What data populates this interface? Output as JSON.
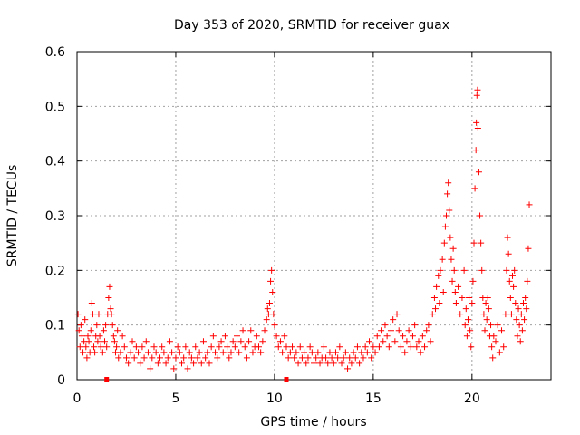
{
  "chart_data": {
    "type": "scatter",
    "title": "Day 353 of 2020, SRMTID for receiver guax",
    "xlabel": "GPS time / hours",
    "ylabel": "SRMTID / TECUs",
    "xlim": [
      0,
      24
    ],
    "ylim": [
      0,
      0.6
    ],
    "xticks": [
      0,
      5,
      10,
      15,
      20
    ],
    "yticks": [
      0,
      0.1,
      0.2,
      0.3,
      0.4,
      0.5,
      0.6
    ],
    "xtick_labels": [
      "0",
      "5",
      "10",
      "15",
      "20"
    ],
    "ytick_labels": [
      "0",
      "0.1",
      "0.2",
      "0.3",
      "0.4",
      "0.5",
      "0.6"
    ],
    "grid": true,
    "marker": "plus",
    "color": "#ff0000",
    "baseline_markers_x": [
      1.5,
      10.6
    ],
    "series": [
      {
        "name": "SRMTID",
        "points": [
          [
            0.05,
            0.12
          ],
          [
            0.1,
            0.09
          ],
          [
            0.15,
            0.06
          ],
          [
            0.2,
            0.1
          ],
          [
            0.25,
            0.08
          ],
          [
            0.3,
            0.05
          ],
          [
            0.35,
            0.07
          ],
          [
            0.4,
            0.11
          ],
          [
            0.45,
            0.06
          ],
          [
            0.5,
            0.04
          ],
          [
            0.55,
            0.08
          ],
          [
            0.6,
            0.07
          ],
          [
            0.65,
            0.05
          ],
          [
            0.7,
            0.09
          ],
          [
            0.75,
            0.14
          ],
          [
            0.8,
            0.12
          ],
          [
            0.85,
            0.06
          ],
          [
            0.9,
            0.05
          ],
          [
            0.95,
            0.08
          ],
          [
            1.0,
            0.1
          ],
          [
            1.05,
            0.07
          ],
          [
            1.1,
            0.12
          ],
          [
            1.15,
            0.08
          ],
          [
            1.2,
            0.06
          ],
          [
            1.3,
            0.05
          ],
          [
            1.35,
            0.09
          ],
          [
            1.4,
            0.07
          ],
          [
            1.45,
            0.1
          ],
          [
            1.5,
            0.06
          ],
          [
            1.55,
            0.12
          ],
          [
            1.6,
            0.15
          ],
          [
            1.65,
            0.17
          ],
          [
            1.7,
            0.13
          ],
          [
            1.75,
            0.12
          ],
          [
            1.8,
            0.1
          ],
          [
            1.85,
            0.08
          ],
          [
            1.9,
            0.07
          ],
          [
            1.95,
            0.05
          ],
          [
            2.0,
            0.06
          ],
          [
            2.05,
            0.09
          ],
          [
            2.1,
            0.04
          ],
          [
            2.2,
            0.05
          ],
          [
            2.3,
            0.08
          ],
          [
            2.4,
            0.06
          ],
          [
            2.5,
            0.04
          ],
          [
            2.6,
            0.03
          ],
          [
            2.7,
            0.05
          ],
          [
            2.8,
            0.07
          ],
          [
            2.9,
            0.04
          ],
          [
            3.0,
            0.06
          ],
          [
            3.1,
            0.05
          ],
          [
            3.2,
            0.03
          ],
          [
            3.3,
            0.06
          ],
          [
            3.4,
            0.04
          ],
          [
            3.5,
            0.07
          ],
          [
            3.6,
            0.05
          ],
          [
            3.7,
            0.02
          ],
          [
            3.8,
            0.04
          ],
          [
            3.9,
            0.06
          ],
          [
            4.0,
            0.05
          ],
          [
            4.1,
            0.03
          ],
          [
            4.2,
            0.04
          ],
          [
            4.3,
            0.06
          ],
          [
            4.4,
            0.05
          ],
          [
            4.5,
            0.03
          ],
          [
            4.6,
            0.04
          ],
          [
            4.7,
            0.07
          ],
          [
            4.8,
            0.05
          ],
          [
            4.9,
            0.02
          ],
          [
            5.0,
            0.04
          ],
          [
            5.1,
            0.06
          ],
          [
            5.2,
            0.05
          ],
          [
            5.3,
            0.03
          ],
          [
            5.4,
            0.04
          ],
          [
            5.5,
            0.06
          ],
          [
            5.6,
            0.02
          ],
          [
            5.7,
            0.05
          ],
          [
            5.8,
            0.04
          ],
          [
            5.9,
            0.03
          ],
          [
            6.0,
            0.06
          ],
          [
            6.1,
            0.04
          ],
          [
            6.2,
            0.05
          ],
          [
            6.3,
            0.03
          ],
          [
            6.4,
            0.07
          ],
          [
            6.5,
            0.04
          ],
          [
            6.6,
            0.05
          ],
          [
            6.7,
            0.03
          ],
          [
            6.8,
            0.06
          ],
          [
            6.9,
            0.08
          ],
          [
            7.0,
            0.05
          ],
          [
            7.1,
            0.04
          ],
          [
            7.2,
            0.06
          ],
          [
            7.3,
            0.07
          ],
          [
            7.4,
            0.05
          ],
          [
            7.5,
            0.08
          ],
          [
            7.6,
            0.06
          ],
          [
            7.7,
            0.04
          ],
          [
            7.8,
            0.05
          ],
          [
            7.9,
            0.07
          ],
          [
            8.0,
            0.06
          ],
          [
            8.1,
            0.08
          ],
          [
            8.2,
            0.05
          ],
          [
            8.3,
            0.07
          ],
          [
            8.4,
            0.09
          ],
          [
            8.5,
            0.06
          ],
          [
            8.6,
            0.04
          ],
          [
            8.7,
            0.07
          ],
          [
            8.8,
            0.09
          ],
          [
            8.9,
            0.05
          ],
          [
            9.0,
            0.06
          ],
          [
            9.1,
            0.08
          ],
          [
            9.2,
            0.06
          ],
          [
            9.3,
            0.05
          ],
          [
            9.4,
            0.07
          ],
          [
            9.5,
            0.09
          ],
          [
            9.6,
            0.11
          ],
          [
            9.65,
            0.13
          ],
          [
            9.7,
            0.12
          ],
          [
            9.75,
            0.14
          ],
          [
            9.8,
            0.18
          ],
          [
            9.85,
            0.2
          ],
          [
            9.9,
            0.16
          ],
          [
            9.95,
            0.12
          ],
          [
            10.0,
            0.1
          ],
          [
            10.1,
            0.08
          ],
          [
            10.2,
            0.06
          ],
          [
            10.3,
            0.07
          ],
          [
            10.4,
            0.05
          ],
          [
            10.5,
            0.08
          ],
          [
            10.6,
            0.06
          ],
          [
            10.7,
            0.04
          ],
          [
            10.8,
            0.05
          ],
          [
            10.9,
            0.06
          ],
          [
            11.0,
            0.04
          ],
          [
            11.1,
            0.05
          ],
          [
            11.2,
            0.03
          ],
          [
            11.3,
            0.06
          ],
          [
            11.4,
            0.04
          ],
          [
            11.5,
            0.05
          ],
          [
            11.6,
            0.03
          ],
          [
            11.7,
            0.04
          ],
          [
            11.8,
            0.06
          ],
          [
            11.9,
            0.05
          ],
          [
            12.0,
            0.03
          ],
          [
            12.1,
            0.04
          ],
          [
            12.2,
            0.05
          ],
          [
            12.3,
            0.03
          ],
          [
            12.4,
            0.04
          ],
          [
            12.5,
            0.06
          ],
          [
            12.6,
            0.04
          ],
          [
            12.7,
            0.03
          ],
          [
            12.8,
            0.05
          ],
          [
            12.9,
            0.04
          ],
          [
            13.0,
            0.03
          ],
          [
            13.1,
            0.05
          ],
          [
            13.2,
            0.04
          ],
          [
            13.3,
            0.06
          ],
          [
            13.4,
            0.03
          ],
          [
            13.5,
            0.04
          ],
          [
            13.6,
            0.05
          ],
          [
            13.7,
            0.02
          ],
          [
            13.8,
            0.04
          ],
          [
            13.9,
            0.03
          ],
          [
            14.0,
            0.05
          ],
          [
            14.1,
            0.04
          ],
          [
            14.2,
            0.06
          ],
          [
            14.3,
            0.03
          ],
          [
            14.4,
            0.05
          ],
          [
            14.5,
            0.04
          ],
          [
            14.6,
            0.06
          ],
          [
            14.7,
            0.05
          ],
          [
            14.8,
            0.07
          ],
          [
            14.9,
            0.04
          ],
          [
            15.0,
            0.06
          ],
          [
            15.1,
            0.05
          ],
          [
            15.2,
            0.08
          ],
          [
            15.3,
            0.06
          ],
          [
            15.4,
            0.09
          ],
          [
            15.5,
            0.07
          ],
          [
            15.6,
            0.1
          ],
          [
            15.7,
            0.08
          ],
          [
            15.8,
            0.06
          ],
          [
            15.9,
            0.09
          ],
          [
            16.0,
            0.11
          ],
          [
            16.1,
            0.07
          ],
          [
            16.2,
            0.12
          ],
          [
            16.3,
            0.09
          ],
          [
            16.4,
            0.06
          ],
          [
            16.5,
            0.08
          ],
          [
            16.6,
            0.05
          ],
          [
            16.7,
            0.07
          ],
          [
            16.8,
            0.09
          ],
          [
            16.9,
            0.06
          ],
          [
            17.0,
            0.08
          ],
          [
            17.1,
            0.1
          ],
          [
            17.2,
            0.06
          ],
          [
            17.3,
            0.07
          ],
          [
            17.4,
            0.05
          ],
          [
            17.5,
            0.08
          ],
          [
            17.6,
            0.06
          ],
          [
            17.7,
            0.09
          ],
          [
            17.8,
            0.1
          ],
          [
            17.9,
            0.07
          ],
          [
            18.0,
            0.12
          ],
          [
            18.1,
            0.15
          ],
          [
            18.15,
            0.13
          ],
          [
            18.2,
            0.17
          ],
          [
            18.3,
            0.19
          ],
          [
            18.35,
            0.14
          ],
          [
            18.4,
            0.2
          ],
          [
            18.5,
            0.22
          ],
          [
            18.55,
            0.16
          ],
          [
            18.6,
            0.25
          ],
          [
            18.65,
            0.28
          ],
          [
            18.7,
            0.3
          ],
          [
            18.75,
            0.34
          ],
          [
            18.8,
            0.36
          ],
          [
            18.85,
            0.31
          ],
          [
            18.9,
            0.26
          ],
          [
            18.95,
            0.22
          ],
          [
            19.0,
            0.18
          ],
          [
            19.05,
            0.24
          ],
          [
            19.1,
            0.2
          ],
          [
            19.15,
            0.16
          ],
          [
            19.2,
            0.14
          ],
          [
            19.3,
            0.17
          ],
          [
            19.4,
            0.12
          ],
          [
            19.5,
            0.15
          ],
          [
            19.6,
            0.2
          ],
          [
            19.65,
            0.1
          ],
          [
            19.7,
            0.13
          ],
          [
            19.75,
            0.08
          ],
          [
            19.8,
            0.11
          ],
          [
            19.85,
            0.15
          ],
          [
            19.9,
            0.09
          ],
          [
            19.95,
            0.06
          ],
          [
            20.0,
            0.14
          ],
          [
            20.05,
            0.18
          ],
          [
            20.1,
            0.25
          ],
          [
            20.15,
            0.35
          ],
          [
            20.2,
            0.42
          ],
          [
            20.22,
            0.47
          ],
          [
            20.25,
            0.52
          ],
          [
            20.28,
            0.53
          ],
          [
            20.3,
            0.46
          ],
          [
            20.35,
            0.38
          ],
          [
            20.4,
            0.3
          ],
          [
            20.45,
            0.25
          ],
          [
            20.5,
            0.2
          ],
          [
            20.55,
            0.15
          ],
          [
            20.6,
            0.12
          ],
          [
            20.65,
            0.09
          ],
          [
            20.7,
            0.14
          ],
          [
            20.75,
            0.11
          ],
          [
            20.8,
            0.15
          ],
          [
            20.85,
            0.13
          ],
          [
            20.9,
            0.08
          ],
          [
            20.95,
            0.1
          ],
          [
            21.0,
            0.06
          ],
          [
            21.05,
            0.04
          ],
          [
            21.1,
            0.08
          ],
          [
            21.2,
            0.07
          ],
          [
            21.3,
            0.1
          ],
          [
            21.4,
            0.05
          ],
          [
            21.5,
            0.09
          ],
          [
            21.6,
            0.06
          ],
          [
            21.7,
            0.12
          ],
          [
            21.75,
            0.2
          ],
          [
            21.8,
            0.26
          ],
          [
            21.85,
            0.23
          ],
          [
            21.9,
            0.18
          ],
          [
            21.95,
            0.15
          ],
          [
            22.0,
            0.12
          ],
          [
            22.05,
            0.19
          ],
          [
            22.1,
            0.17
          ],
          [
            22.15,
            0.2
          ],
          [
            22.2,
            0.14
          ],
          [
            22.25,
            0.11
          ],
          [
            22.3,
            0.08
          ],
          [
            22.35,
            0.13
          ],
          [
            22.4,
            0.1
          ],
          [
            22.45,
            0.07
          ],
          [
            22.5,
            0.12
          ],
          [
            22.55,
            0.09
          ],
          [
            22.6,
            0.14
          ],
          [
            22.65,
            0.11
          ],
          [
            22.7,
            0.15
          ],
          [
            22.75,
            0.13
          ],
          [
            22.8,
            0.18
          ],
          [
            22.85,
            0.24
          ],
          [
            22.9,
            0.32
          ]
        ]
      }
    ]
  }
}
